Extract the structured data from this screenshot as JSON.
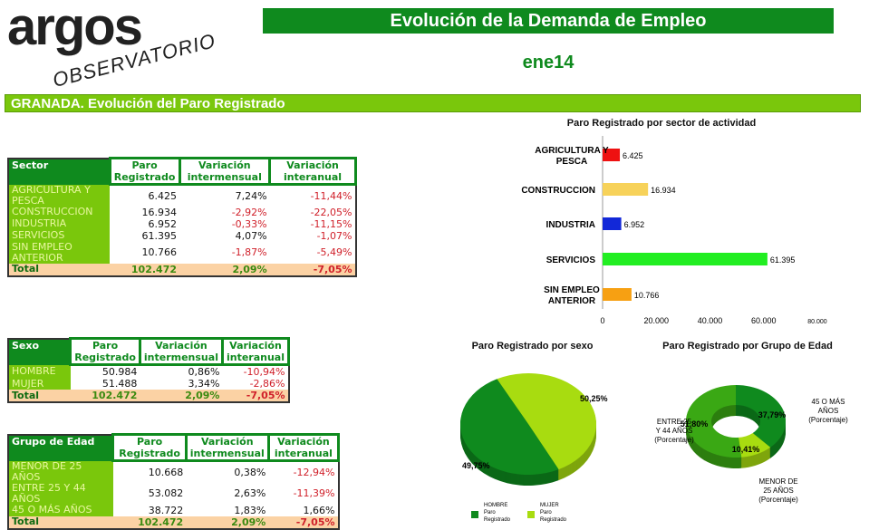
{
  "logo": {
    "text": "argos",
    "sub": "OBSERVATORIO"
  },
  "header": {
    "title": "Evolución de la Demanda de Empleo",
    "period": "ene14",
    "section": "GRANADA. Evolución del Paro Registrado"
  },
  "colors": {
    "dark_green": "#0f8a1e",
    "light_green": "#7ac70c",
    "total_bg": "#fbd2a4",
    "negative": "#d0202a"
  },
  "sector_table": {
    "headers": [
      "Sector",
      "Paro Registrado",
      "Variación intermensual",
      "Variación interanual"
    ],
    "rows": [
      [
        "AGRICULTURA Y PESCA",
        "6.425",
        "7,24%",
        "-11,44%"
      ],
      [
        "CONSTRUCCION",
        "16.934",
        "-2,92%",
        "-22,05%"
      ],
      [
        "INDUSTRIA",
        "6.952",
        "-0,33%",
        "-11,15%"
      ],
      [
        "SERVICIOS",
        "61.395",
        "4,07%",
        "-1,07%"
      ],
      [
        "SIN EMPLEO ANTERIOR",
        "10.766",
        "-1,87%",
        "-5,49%"
      ]
    ],
    "total": [
      "Total",
      "102.472",
      "2,09%",
      "-7,05%"
    ]
  },
  "sexo_table": {
    "headers": [
      "Sexo",
      "Paro Registrado",
      "Variación intermensual",
      "Variación interanual"
    ],
    "rows": [
      [
        "HOMBRE",
        "50.984",
        "0,86%",
        "-10,94%"
      ],
      [
        "MUJER",
        "51.488",
        "3,34%",
        "-2,86%"
      ]
    ],
    "total": [
      "Total",
      "102.472",
      "2,09%",
      "-7,05%"
    ]
  },
  "edad_table": {
    "headers": [
      "Grupo de Edad",
      "Paro Registrado",
      "Variación intermensual",
      "Variación interanual"
    ],
    "rows": [
      [
        "MENOR DE 25 AÑOS",
        "10.668",
        "0,38%",
        "-12,94%"
      ],
      [
        "ENTRE 25 Y 44 AÑOS",
        "53.082",
        "2,63%",
        "-11,39%"
      ],
      [
        "45 O MÁS AÑOS",
        "38.722",
        "1,83%",
        "1,66%"
      ]
    ],
    "total": [
      "Total",
      "102.472",
      "2,09%",
      "-7,05%"
    ]
  },
  "chart_data": [
    {
      "type": "bar",
      "orientation": "horizontal",
      "title": "Paro Registrado por sector de actividad",
      "categories": [
        "AGRICULTURA Y PESCA",
        "CONSTRUCCION",
        "INDUSTRIA",
        "SERVICIOS",
        "SIN EMPLEO ANTERIOR"
      ],
      "values": [
        6425,
        16934,
        6952,
        61395,
        10766
      ],
      "labels": [
        "6.425",
        "16.934",
        "6.952",
        "61.395",
        "10.766"
      ],
      "colors": [
        "#ee1111",
        "#f7d25a",
        "#1228d8",
        "#22ee22",
        "#f7a012"
      ],
      "xlim": [
        0,
        80000
      ],
      "xticks": [
        "0",
        "20.000",
        "40.000",
        "60.000",
        "80.000"
      ]
    },
    {
      "type": "pie",
      "title": "Paro Registrado por sexo",
      "slices": [
        {
          "name": "HOMBRE Paro Registrado",
          "value": 49.75,
          "label": "49,75%",
          "color": "#0f8a1e"
        },
        {
          "name": "MUJER Paro Registrado",
          "value": 50.25,
          "label": "50,25%",
          "color": "#a8dc10"
        }
      ],
      "legend": [
        [
          "HOMBRE",
          "Paro",
          "Registrado"
        ],
        [
          "MUJER",
          "Paro",
          "Registrado"
        ]
      ],
      "legend_placement": "bottom"
    },
    {
      "type": "pie",
      "style": "donut",
      "title": "Paro Registrado por Grupo de Edad",
      "slices": [
        {
          "name": "45 O MÁS AÑOS (Porcentaje)",
          "value": 37.79,
          "label": "37,79%",
          "color": "#0f8a1e",
          "text": [
            "45 O MÁS",
            "AÑOS",
            "(Porcentaje)"
          ]
        },
        {
          "name": "MENOR DE 25 AÑOS (Porcentaje)",
          "value": 10.41,
          "label": "10,41%",
          "color": "#a8dc10",
          "text": [
            "MENOR DE",
            "25 AÑOS",
            "(Porcentaje)"
          ]
        },
        {
          "name": "ENTRE 25 Y 44 AÑOS (Porcentaje)",
          "value": 51.8,
          "label": "51,80%",
          "color": "#3aa814",
          "text": [
            "ENTRE 25",
            "Y 44 AÑOS",
            "(Porcentaje)"
          ]
        }
      ]
    }
  ]
}
